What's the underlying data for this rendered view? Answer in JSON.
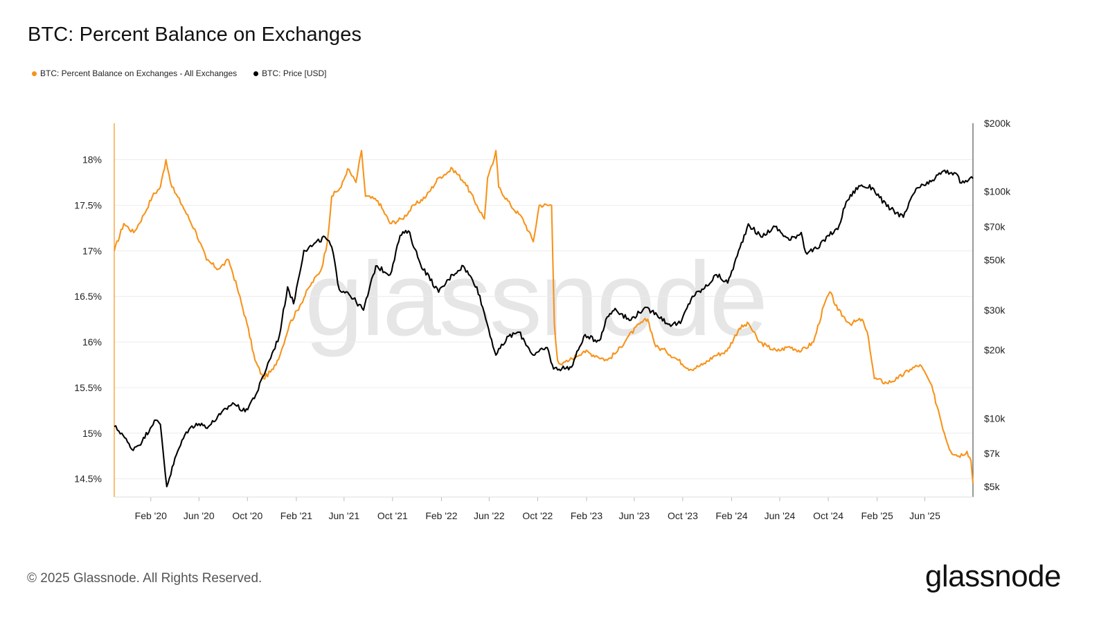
{
  "title": "BTC: Percent Balance on Exchanges",
  "legend": {
    "items": [
      {
        "label": "BTC: Percent Balance on Exchanges - All Exchanges",
        "color": "#f7931a",
        "icon": "legend-dot"
      },
      {
        "label": "BTC: Price [USD]",
        "color": "#000000",
        "icon": "legend-dot"
      }
    ]
  },
  "footer": {
    "copyright": "© 2025 Glassnode. All Rights Reserved."
  },
  "brand": {
    "logo_text": "glassnode",
    "watermark": "glassnode"
  },
  "chart_data": {
    "type": "line",
    "title": "BTC: Percent Balance on Exchanges",
    "xlabel": "",
    "x_ticks": [
      "Feb '20",
      "Jun '20",
      "Oct '20",
      "Feb '21",
      "Jun '21",
      "Oct '21",
      "Feb '22",
      "Jun '22",
      "Oct '22",
      "Feb '23",
      "Jun '23",
      "Oct '23",
      "Feb '24",
      "Jun '24",
      "Oct '24",
      "Feb '25",
      "Jun '25"
    ],
    "x_range": [
      "2019-11-01",
      "2025-09-30"
    ],
    "y_left": {
      "label": "",
      "ticks": [
        "18%",
        "17.5%",
        "17%",
        "16.5%",
        "16%",
        "15.5%",
        "15%",
        "14.5%"
      ],
      "tick_values": [
        18,
        17.5,
        17,
        16.5,
        16,
        15.5,
        15,
        14.5
      ],
      "range": [
        14.3,
        18.4
      ]
    },
    "y_right": {
      "label": "",
      "scale": "log",
      "ticks": [
        "$200k",
        "$100k",
        "$70k",
        "$50k",
        "$30k",
        "$20k",
        "$10k",
        "$7k",
        "$5k"
      ],
      "tick_values": [
        200000,
        100000,
        70000,
        50000,
        30000,
        20000,
        10000,
        7000,
        5000
      ],
      "range": [
        4500,
        200000
      ]
    },
    "grid": true,
    "legend_position": "top-left",
    "series": [
      {
        "name": "BTC: Percent Balance on Exchanges - All Exchanges",
        "axis": "left",
        "color": "#f7931a",
        "points": [
          [
            "2019-11-01",
            17.0
          ],
          [
            "2019-11-25",
            17.3
          ],
          [
            "2019-12-20",
            17.2
          ],
          [
            "2020-01-15",
            17.4
          ],
          [
            "2020-02-05",
            17.6
          ],
          [
            "2020-02-25",
            17.7
          ],
          [
            "2020-03-10",
            18.0
          ],
          [
            "2020-03-25",
            17.7
          ],
          [
            "2020-04-20",
            17.5
          ],
          [
            "2020-05-25",
            17.2
          ],
          [
            "2020-06-20",
            16.9
          ],
          [
            "2020-07-20",
            16.8
          ],
          [
            "2020-08-15",
            16.9
          ],
          [
            "2020-09-05",
            16.6
          ],
          [
            "2020-09-30",
            16.2
          ],
          [
            "2020-10-20",
            15.8
          ],
          [
            "2020-11-10",
            15.6
          ],
          [
            "2020-12-05",
            15.7
          ],
          [
            "2020-12-25",
            15.9
          ],
          [
            "2021-01-15",
            16.2
          ],
          [
            "2021-02-10",
            16.4
          ],
          [
            "2021-03-05",
            16.6
          ],
          [
            "2021-04-05",
            16.8
          ],
          [
            "2021-04-20",
            17.1
          ],
          [
            "2021-05-01",
            17.6
          ],
          [
            "2021-05-25",
            17.7
          ],
          [
            "2021-06-10",
            17.9
          ],
          [
            "2021-07-01",
            17.75
          ],
          [
            "2021-07-15",
            18.1
          ],
          [
            "2021-07-25",
            17.6
          ],
          [
            "2021-08-25",
            17.55
          ],
          [
            "2021-09-25",
            17.3
          ],
          [
            "2021-10-25",
            17.35
          ],
          [
            "2021-11-25",
            17.5
          ],
          [
            "2021-12-25",
            17.6
          ],
          [
            "2022-01-25",
            17.8
          ],
          [
            "2022-03-01",
            17.9
          ],
          [
            "2022-04-01",
            17.75
          ],
          [
            "2022-05-01",
            17.5
          ],
          [
            "2022-05-20",
            17.35
          ],
          [
            "2022-05-28",
            17.8
          ],
          [
            "2022-06-10",
            17.95
          ],
          [
            "2022-06-18",
            18.1
          ],
          [
            "2022-06-25",
            17.7
          ],
          [
            "2022-07-25",
            17.5
          ],
          [
            "2022-08-25",
            17.35
          ],
          [
            "2022-09-20",
            17.1
          ],
          [
            "2022-10-05",
            17.5
          ],
          [
            "2022-11-05",
            17.5
          ],
          [
            "2022-11-12",
            16.2
          ],
          [
            "2022-11-20",
            15.8
          ],
          [
            "2022-12-01",
            15.75
          ],
          [
            "2022-12-20",
            15.8
          ],
          [
            "2023-01-25",
            15.9
          ],
          [
            "2023-02-25",
            15.85
          ],
          [
            "2023-03-25",
            15.8
          ],
          [
            "2023-04-20",
            15.9
          ],
          [
            "2023-05-15",
            16.05
          ],
          [
            "2023-06-15",
            16.2
          ],
          [
            "2023-07-05",
            16.25
          ],
          [
            "2023-07-25",
            15.95
          ],
          [
            "2023-08-20",
            15.9
          ],
          [
            "2023-09-20",
            15.8
          ],
          [
            "2023-10-20",
            15.7
          ],
          [
            "2023-11-20",
            15.75
          ],
          [
            "2023-12-20",
            15.85
          ],
          [
            "2024-01-20",
            15.9
          ],
          [
            "2024-02-20",
            16.15
          ],
          [
            "2024-03-15",
            16.2
          ],
          [
            "2024-04-10",
            16.0
          ],
          [
            "2024-05-01",
            15.95
          ],
          [
            "2024-05-25",
            15.9
          ],
          [
            "2024-06-25",
            15.95
          ],
          [
            "2024-07-25",
            15.9
          ],
          [
            "2024-08-25",
            16.0
          ],
          [
            "2024-09-20",
            16.4
          ],
          [
            "2024-10-05",
            16.55
          ],
          [
            "2024-10-25",
            16.35
          ],
          [
            "2024-11-25",
            16.2
          ],
          [
            "2024-12-25",
            16.25
          ],
          [
            "2025-01-10",
            16.05
          ],
          [
            "2025-01-25",
            15.6
          ],
          [
            "2025-02-25",
            15.55
          ],
          [
            "2025-03-25",
            15.6
          ],
          [
            "2025-04-25",
            15.7
          ],
          [
            "2025-05-20",
            15.75
          ],
          [
            "2025-06-15",
            15.55
          ],
          [
            "2025-07-05",
            15.25
          ],
          [
            "2025-07-20",
            15.0
          ],
          [
            "2025-08-05",
            14.8
          ],
          [
            "2025-08-25",
            14.75
          ],
          [
            "2025-09-15",
            14.8
          ],
          [
            "2025-09-25",
            14.7
          ],
          [
            "2025-09-30",
            14.45
          ]
        ]
      },
      {
        "name": "BTC: Price [USD]",
        "axis": "right",
        "color": "#000000",
        "points": [
          [
            "2019-11-01",
            9200
          ],
          [
            "2019-11-20",
            8600
          ],
          [
            "2019-12-15",
            7300
          ],
          [
            "2020-01-10",
            7900
          ],
          [
            "2020-02-10",
            9800
          ],
          [
            "2020-02-25",
            9400
          ],
          [
            "2020-03-12",
            5000
          ],
          [
            "2020-04-05",
            6900
          ],
          [
            "2020-04-30",
            8700
          ],
          [
            "2020-05-25",
            9500
          ],
          [
            "2020-06-25",
            9200
          ],
          [
            "2020-07-25",
            10400
          ],
          [
            "2020-08-25",
            11700
          ],
          [
            "2020-09-25",
            10700
          ],
          [
            "2020-10-25",
            13000
          ],
          [
            "2020-11-25",
            18000
          ],
          [
            "2020-12-20",
            23000
          ],
          [
            "2021-01-10",
            38000
          ],
          [
            "2021-01-25",
            32000
          ],
          [
            "2021-02-20",
            55000
          ],
          [
            "2021-03-15",
            58000
          ],
          [
            "2021-04-14",
            63000
          ],
          [
            "2021-05-01",
            57000
          ],
          [
            "2021-05-20",
            37000
          ],
          [
            "2021-06-10",
            36000
          ],
          [
            "2021-07-20",
            30000
          ],
          [
            "2021-08-20",
            47000
          ],
          [
            "2021-09-25",
            43000
          ],
          [
            "2021-10-20",
            64000
          ],
          [
            "2021-11-10",
            67000
          ],
          [
            "2021-12-10",
            48000
          ],
          [
            "2022-01-25",
            36000
          ],
          [
            "2022-03-01",
            43000
          ],
          [
            "2022-03-28",
            47000
          ],
          [
            "2022-05-01",
            38000
          ],
          [
            "2022-05-20",
            29000
          ],
          [
            "2022-06-18",
            19000
          ],
          [
            "2022-07-20",
            23000
          ],
          [
            "2022-08-15",
            24000
          ],
          [
            "2022-09-20",
            19000
          ],
          [
            "2022-10-25",
            20500
          ],
          [
            "2022-11-10",
            16500
          ],
          [
            "2022-12-25",
            16800
          ],
          [
            "2023-01-25",
            23000
          ],
          [
            "2023-03-05",
            22000
          ],
          [
            "2023-03-25",
            28000
          ],
          [
            "2023-04-14",
            30500
          ],
          [
            "2023-05-20",
            27000
          ],
          [
            "2023-06-25",
            30500
          ],
          [
            "2023-07-25",
            29200
          ],
          [
            "2023-08-25",
            26000
          ],
          [
            "2023-09-25",
            26200
          ],
          [
            "2023-10-25",
            34500
          ],
          [
            "2023-11-25",
            37500
          ],
          [
            "2023-12-25",
            43000
          ],
          [
            "2024-01-22",
            39500
          ],
          [
            "2024-02-15",
            52000
          ],
          [
            "2024-03-14",
            72000
          ],
          [
            "2024-04-15",
            63000
          ],
          [
            "2024-05-20",
            70000
          ],
          [
            "2024-06-25",
            61000
          ],
          [
            "2024-07-25",
            66000
          ],
          [
            "2024-08-05",
            54000
          ],
          [
            "2024-09-05",
            56000
          ],
          [
            "2024-09-30",
            64000
          ],
          [
            "2024-10-25",
            68000
          ],
          [
            "2024-11-15",
            90000
          ],
          [
            "2024-12-17",
            106000
          ],
          [
            "2025-01-20",
            104000
          ],
          [
            "2025-02-25",
            86000
          ],
          [
            "2025-04-08",
            77000
          ],
          [
            "2025-05-10",
            103000
          ],
          [
            "2025-06-10",
            108000
          ],
          [
            "2025-07-14",
            122000
          ],
          [
            "2025-08-14",
            121000
          ],
          [
            "2025-09-01",
            109000
          ],
          [
            "2025-09-30",
            114000
          ]
        ]
      }
    ]
  }
}
